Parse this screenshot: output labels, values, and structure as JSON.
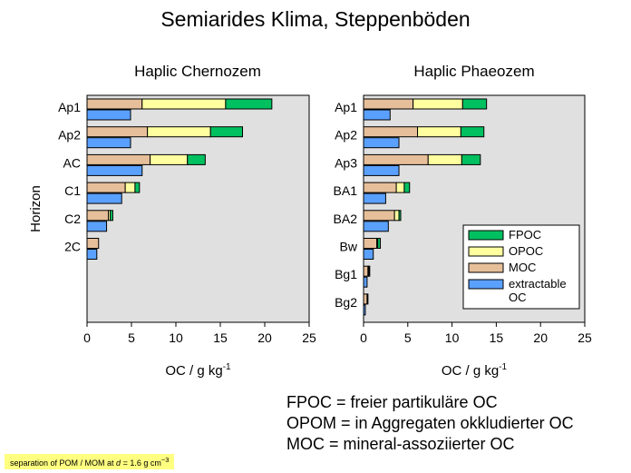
{
  "title": "Semiarides Klima, Steppenböden",
  "chart_data": [
    {
      "type": "bar",
      "stacked": true,
      "orientation": "horizontal",
      "title": "Haplic Chernozem",
      "ylabel": "Horizon",
      "xlabel": "OC / g kg",
      "xlabel_sup": "-1",
      "xlim": [
        0,
        25
      ],
      "xticks": [
        "0",
        "5",
        "10",
        "15",
        "20",
        "25"
      ],
      "categories": [
        "Ap1",
        "Ap2",
        "AC",
        "C1",
        "C2",
        "2C"
      ],
      "series": [
        {
          "name": "MOC",
          "stack": "total",
          "values": [
            6.2,
            6.8,
            7.1,
            4.3,
            2.4,
            1.3
          ]
        },
        {
          "name": "OPOC",
          "stack": "total",
          "values": [
            9.4,
            7.1,
            4.2,
            1.1,
            0.2,
            0.0
          ]
        },
        {
          "name": "FPOC",
          "stack": "total",
          "values": [
            5.2,
            3.6,
            2.0,
            0.5,
            0.3,
            0.0
          ]
        },
        {
          "name": "extractable OC",
          "stack": "extractable",
          "values": [
            4.9,
            4.9,
            6.2,
            3.9,
            2.2,
            1.1
          ]
        }
      ]
    },
    {
      "type": "bar",
      "stacked": true,
      "orientation": "horizontal",
      "title": "Haplic Phaeozem",
      "xlabel": "OC / g kg",
      "xlabel_sup": "-1",
      "xlim": [
        0,
        25
      ],
      "xticks": [
        "0",
        "5",
        "10",
        "15",
        "20",
        "25"
      ],
      "categories": [
        "Ap1",
        "Ap2",
        "Ap3",
        "BA1",
        "BA2",
        "Bw",
        "Bg1",
        "Bg2"
      ],
      "series": [
        {
          "name": "MOC",
          "stack": "total",
          "values": [
            5.6,
            6.1,
            7.3,
            3.7,
            3.5,
            1.5,
            0.5,
            0.4
          ]
        },
        {
          "name": "OPOC",
          "stack": "total",
          "values": [
            5.6,
            4.9,
            3.8,
            0.9,
            0.5,
            0.1,
            0.1,
            0.0
          ]
        },
        {
          "name": "FPOC",
          "stack": "total",
          "values": [
            2.7,
            2.6,
            2.1,
            0.6,
            0.2,
            0.3,
            0.1,
            0.1
          ]
        },
        {
          "name": "extractable OC",
          "stack": "extractable",
          "values": [
            3.0,
            4.0,
            4.0,
            2.5,
            2.8,
            1.1,
            0.4,
            0.2
          ]
        }
      ]
    }
  ],
  "legend": {
    "placement": "lower-right of second panel",
    "items": [
      {
        "key": "FPOC",
        "label": "FPOC"
      },
      {
        "key": "OPOC",
        "label": "OPOC"
      },
      {
        "key": "MOC",
        "label": "MOC"
      },
      {
        "key": "extractable OC",
        "label": "extractable OC"
      }
    ]
  },
  "colors": {
    "FPOC": "#00c060",
    "OPOC": "#ffffa0",
    "MOC": "#e6bf9a",
    "extractable OC": "#5aa0ff",
    "plot_background": "#e0e0e0"
  },
  "definitions": [
    "FPOC = freier partikuläre OC",
    "OPOM = in Aggregaten okkludierter OC",
    "MOC = mineral-assoziierter OC"
  ],
  "footnote": {
    "before": "separation of POM / MOM at ",
    "var": "d",
    "after": " = 1.6 g cm",
    "sup": "−3"
  }
}
